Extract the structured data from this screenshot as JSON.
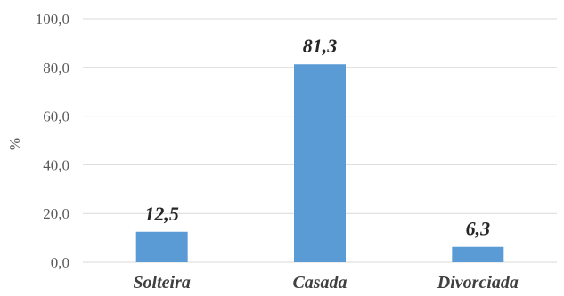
{
  "chart_data": {
    "type": "bar",
    "categories": [
      "Solteira",
      "Casada",
      "Divorciada"
    ],
    "values": [
      12.5,
      81.3,
      6.3
    ],
    "value_labels": [
      "12,5",
      "81,3",
      "6,3"
    ],
    "ylabel": "%",
    "ylim": [
      0,
      100
    ],
    "yticks": [
      0,
      20,
      40,
      60,
      80,
      100
    ],
    "ytick_labels": [
      "0,0",
      "20,0",
      "40,0",
      "60,0",
      "80,0",
      "100,0"
    ],
    "grid": true,
    "bar_color": "#5b9bd5",
    "grid_color": "#d9d9d9"
  }
}
